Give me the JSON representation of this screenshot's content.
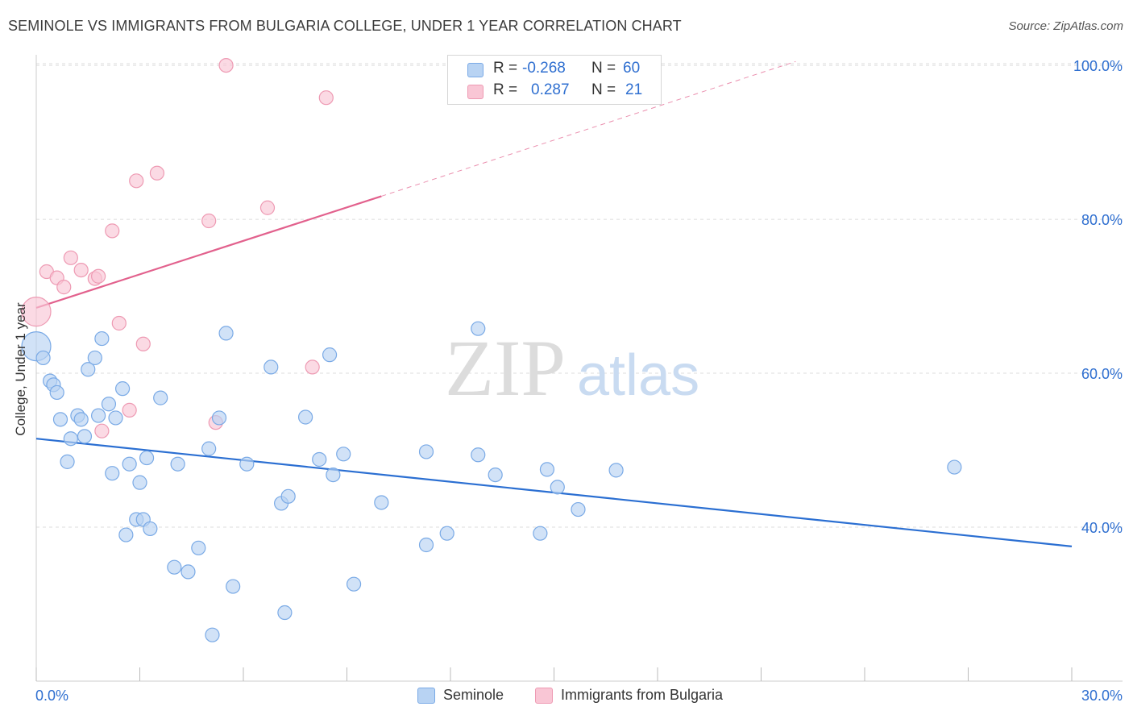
{
  "title": "SEMINOLE VS IMMIGRANTS FROM BULGARIA COLLEGE, UNDER 1 YEAR CORRELATION CHART",
  "source": "Source: ZipAtlas.com",
  "watermark": {
    "zip": "ZIP",
    "atlas": "atlas"
  },
  "legend": {
    "seminole": {
      "r_label": "R =",
      "r_value": "-0.268",
      "n_label": "N =",
      "n_value": "60"
    },
    "bulgaria": {
      "r_label": "R =",
      "r_value": "0.287",
      "n_label": "N =",
      "n_value": "21"
    }
  },
  "bottom_legend": {
    "seminole": "Seminole",
    "bulgaria": "Immigrants from Bulgaria"
  },
  "colors": {
    "seminole_fill": "#b8d3f3",
    "seminole_stroke": "#7aaae6",
    "seminole_line": "#2b6fd2",
    "bulgaria_fill": "#f9c6d5",
    "bulgaria_stroke": "#ee9ab3",
    "bulgaria_line": "#e2618d",
    "tick_text": "#2f6fd0",
    "grid": "#dddddd"
  },
  "chart_data": {
    "type": "scatter",
    "title": "SEMINOLE VS IMMIGRANTS FROM BULGARIA COLLEGE, UNDER 1 YEAR CORRELATION CHART",
    "xlabel": "",
    "ylabel": "College, Under 1 year",
    "xlim": [
      0,
      30
    ],
    "ylim": [
      20,
      102
    ],
    "x_tick_labels": [
      "0.0%",
      "30.0%"
    ],
    "y_ticks": [
      {
        "value": 40,
        "label": "40.0%"
      },
      {
        "value": 60,
        "label": "60.0%"
      },
      {
        "value": 80,
        "label": "80.0%"
      },
      {
        "value": 100,
        "label": "100.0%"
      }
    ],
    "grid": true,
    "legend_position": "top-center",
    "series": [
      {
        "name": "Seminole",
        "trend": {
          "x": [
            0,
            30
          ],
          "y": [
            51.5,
            37.5
          ]
        },
        "points": [
          {
            "x": 0.0,
            "y": 63.5,
            "size": "large"
          },
          {
            "x": 0.2,
            "y": 62.0
          },
          {
            "x": 0.4,
            "y": 59.0
          },
          {
            "x": 0.5,
            "y": 58.5
          },
          {
            "x": 0.6,
            "y": 57.5
          },
          {
            "x": 0.7,
            "y": 54.0
          },
          {
            "x": 0.9,
            "y": 48.5
          },
          {
            "x": 1.0,
            "y": 51.5
          },
          {
            "x": 1.2,
            "y": 54.5
          },
          {
            "x": 1.3,
            "y": 54.0
          },
          {
            "x": 1.4,
            "y": 51.8
          },
          {
            "x": 1.5,
            "y": 60.5
          },
          {
            "x": 1.7,
            "y": 62.0
          },
          {
            "x": 1.8,
            "y": 54.5
          },
          {
            "x": 1.9,
            "y": 64.5
          },
          {
            "x": 2.1,
            "y": 56.0
          },
          {
            "x": 2.2,
            "y": 47.0
          },
          {
            "x": 2.3,
            "y": 54.2
          },
          {
            "x": 2.5,
            "y": 58.0
          },
          {
            "x": 2.6,
            "y": 39.0
          },
          {
            "x": 2.7,
            "y": 48.2
          },
          {
            "x": 2.9,
            "y": 41.0
          },
          {
            "x": 3.0,
            "y": 45.8
          },
          {
            "x": 3.1,
            "y": 41.0
          },
          {
            "x": 3.2,
            "y": 49.0
          },
          {
            "x": 3.3,
            "y": 39.8
          },
          {
            "x": 3.6,
            "y": 56.8
          },
          {
            "x": 4.0,
            "y": 34.8
          },
          {
            "x": 4.1,
            "y": 48.2
          },
          {
            "x": 4.4,
            "y": 34.2
          },
          {
            "x": 4.7,
            "y": 37.3
          },
          {
            "x": 5.0,
            "y": 50.2
          },
          {
            "x": 5.1,
            "y": 26.0
          },
          {
            "x": 5.3,
            "y": 54.2
          },
          {
            "x": 5.5,
            "y": 65.2
          },
          {
            "x": 5.7,
            "y": 32.3
          },
          {
            "x": 6.1,
            "y": 48.2
          },
          {
            "x": 6.8,
            "y": 60.8
          },
          {
            "x": 7.1,
            "y": 43.1
          },
          {
            "x": 7.2,
            "y": 28.9
          },
          {
            "x": 7.3,
            "y": 44.0
          },
          {
            "x": 7.8,
            "y": 54.3
          },
          {
            "x": 8.2,
            "y": 48.8
          },
          {
            "x": 8.5,
            "y": 62.4
          },
          {
            "x": 8.6,
            "y": 46.8
          },
          {
            "x": 8.9,
            "y": 49.5
          },
          {
            "x": 9.2,
            "y": 32.6
          },
          {
            "x": 10.0,
            "y": 43.2
          },
          {
            "x": 11.3,
            "y": 37.7
          },
          {
            "x": 11.3,
            "y": 49.8
          },
          {
            "x": 11.9,
            "y": 39.2
          },
          {
            "x": 12.8,
            "y": 49.4
          },
          {
            "x": 12.8,
            "y": 65.8
          },
          {
            "x": 13.3,
            "y": 46.8
          },
          {
            "x": 14.6,
            "y": 39.2
          },
          {
            "x": 14.8,
            "y": 47.5
          },
          {
            "x": 15.1,
            "y": 45.2
          },
          {
            "x": 15.7,
            "y": 42.3
          },
          {
            "x": 16.8,
            "y": 47.4
          },
          {
            "x": 26.6,
            "y": 47.8
          }
        ]
      },
      {
        "name": "Immigrants from Bulgaria",
        "trend": {
          "x": [
            0,
            10
          ],
          "y": [
            68.5,
            83.0
          ],
          "dashed_to": {
            "x": 22,
            "y": 100.5
          }
        },
        "points": [
          {
            "x": 0.0,
            "y": 68.0,
            "size": "large"
          },
          {
            "x": 0.3,
            "y": 73.2
          },
          {
            "x": 0.6,
            "y": 72.4
          },
          {
            "x": 0.8,
            "y": 71.2
          },
          {
            "x": 1.0,
            "y": 75.0
          },
          {
            "x": 1.3,
            "y": 73.4
          },
          {
            "x": 1.7,
            "y": 72.3
          },
          {
            "x": 1.8,
            "y": 72.6
          },
          {
            "x": 1.9,
            "y": 52.5
          },
          {
            "x": 2.2,
            "y": 78.5
          },
          {
            "x": 2.4,
            "y": 66.5
          },
          {
            "x": 2.7,
            "y": 55.2
          },
          {
            "x": 2.9,
            "y": 85.0
          },
          {
            "x": 3.1,
            "y": 63.8
          },
          {
            "x": 3.5,
            "y": 86.0
          },
          {
            "x": 5.0,
            "y": 79.8
          },
          {
            "x": 5.2,
            "y": 53.6
          },
          {
            "x": 5.5,
            "y": 100.0
          },
          {
            "x": 6.7,
            "y": 81.5
          },
          {
            "x": 8.0,
            "y": 60.8
          },
          {
            "x": 8.4,
            "y": 95.8
          }
        ]
      }
    ]
  }
}
